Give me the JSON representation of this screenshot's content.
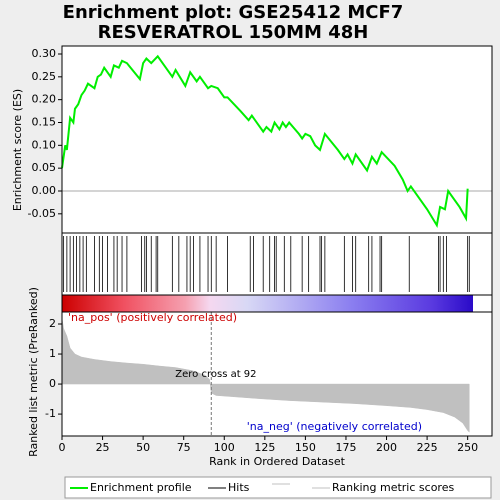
{
  "chart_data": {
    "type": "line",
    "title": [
      "Enrichment plot: GSE25412 MCF7",
      "RESVERATROL 150MM 48H"
    ],
    "ylabel": "Enrichment score (ES)",
    "xlabel": "Rank in Ordered Dataset",
    "xlim": [
      0,
      265
    ],
    "xticks": [
      0,
      25,
      50,
      75,
      100,
      125,
      150,
      175,
      200,
      225,
      250
    ],
    "ylim": [
      -0.092,
      0.3175
    ],
    "yticks": [
      {
        "value": -0.05,
        "label": "-0.05"
      },
      {
        "value": 0,
        "label": "0.00"
      },
      {
        "value": 0.05,
        "label": "0.05"
      },
      {
        "value": 0.1,
        "label": "0.10"
      },
      {
        "value": 0.15,
        "label": "0.15"
      },
      {
        "value": 0.2,
        "label": "0.20"
      },
      {
        "value": 0.25,
        "label": "0.25"
      },
      {
        "value": 0.3,
        "label": "0.30"
      }
    ],
    "color": "#00ee00",
    "x": [
      0,
      2,
      3,
      5,
      7,
      8,
      10,
      12,
      14,
      16,
      20,
      22,
      24,
      26,
      30,
      32,
      35,
      37,
      40,
      48,
      50,
      52,
      55,
      59,
      64,
      68,
      70,
      76,
      79,
      83,
      85,
      90,
      92,
      96,
      100,
      102,
      110,
      115,
      117,
      122,
      124,
      126,
      129,
      131,
      134,
      136,
      138,
      140,
      146,
      148,
      150,
      153,
      156,
      159,
      162,
      170,
      174,
      176,
      179,
      181,
      188,
      191,
      194,
      197,
      205,
      210,
      213,
      215,
      225,
      231,
      233,
      236,
      238,
      245,
      249,
      250
    ],
    "values": [
      0.05,
      0.1,
      0.09,
      0.16,
      0.15,
      0.18,
      0.19,
      0.21,
      0.22,
      0.235,
      0.225,
      0.25,
      0.255,
      0.27,
      0.25,
      0.275,
      0.27,
      0.285,
      0.28,
      0.245,
      0.28,
      0.29,
      0.28,
      0.295,
      0.27,
      0.25,
      0.265,
      0.23,
      0.26,
      0.24,
      0.25,
      0.225,
      0.23,
      0.225,
      0.205,
      0.205,
      0.175,
      0.155,
      0.165,
      0.14,
      0.13,
      0.14,
      0.13,
      0.15,
      0.135,
      0.15,
      0.14,
      0.15,
      0.125,
      0.115,
      0.125,
      0.12,
      0.1,
      0.09,
      0.125,
      0.09,
      0.07,
      0.08,
      0.06,
      0.08,
      0.045,
      0.075,
      0.06,
      0.085,
      0.055,
      0.025,
      0,
      0.01,
      -0.04,
      -0.075,
      -0.035,
      -0.04,
      0,
      -0.035,
      -0.06,
      0.005
    ],
    "hits": [
      1,
      3,
      5,
      7,
      9,
      11,
      13,
      15,
      20,
      23,
      25,
      28,
      32,
      34,
      37,
      40,
      49,
      51,
      52,
      55,
      58,
      59,
      68,
      72,
      77,
      79,
      81,
      85,
      90,
      92,
      95,
      102,
      116,
      118,
      124,
      128,
      131,
      132,
      137,
      141,
      148,
      152,
      159,
      160,
      162,
      174,
      179,
      181,
      189,
      191,
      196,
      197,
      214,
      232,
      233,
      235,
      237,
      250,
      251
    ],
    "metric": {
      "type": "area",
      "ylabel": "Ranked list metric (PreRanked)",
      "ylim": [
        -1.73,
        2.4
      ],
      "yticks": [
        -1,
        0,
        1,
        2
      ],
      "color": "#c0c0c0",
      "x": [
        0,
        1,
        3,
        5,
        8,
        12,
        20,
        30,
        40,
        50,
        60,
        70,
        80,
        88,
        91,
        92,
        95,
        105,
        120,
        140,
        160,
        180,
        200,
        215,
        225,
        235,
        242,
        247,
        250,
        251
      ],
      "values": [
        2.2,
        1.85,
        1.6,
        1.2,
        1.0,
        0.9,
        0.82,
        0.75,
        0.7,
        0.66,
        0.6,
        0.55,
        0.45,
        0.3,
        0.15,
        -0.3,
        -0.38,
        -0.42,
        -0.48,
        -0.55,
        -0.6,
        -0.65,
        -0.72,
        -0.78,
        -0.85,
        -0.95,
        -1.1,
        -1.3,
        -1.55,
        -1.6
      ]
    },
    "zero_cross": 92,
    "annotations": {
      "pos": "'na_pos' (positively correlated)",
      "neg": "'na_neg' (negatively correlated)",
      "zero": "Zero cross at 92"
    },
    "legend": [
      "Enrichment profile",
      "Hits",
      "Ranking metric scores"
    ]
  }
}
